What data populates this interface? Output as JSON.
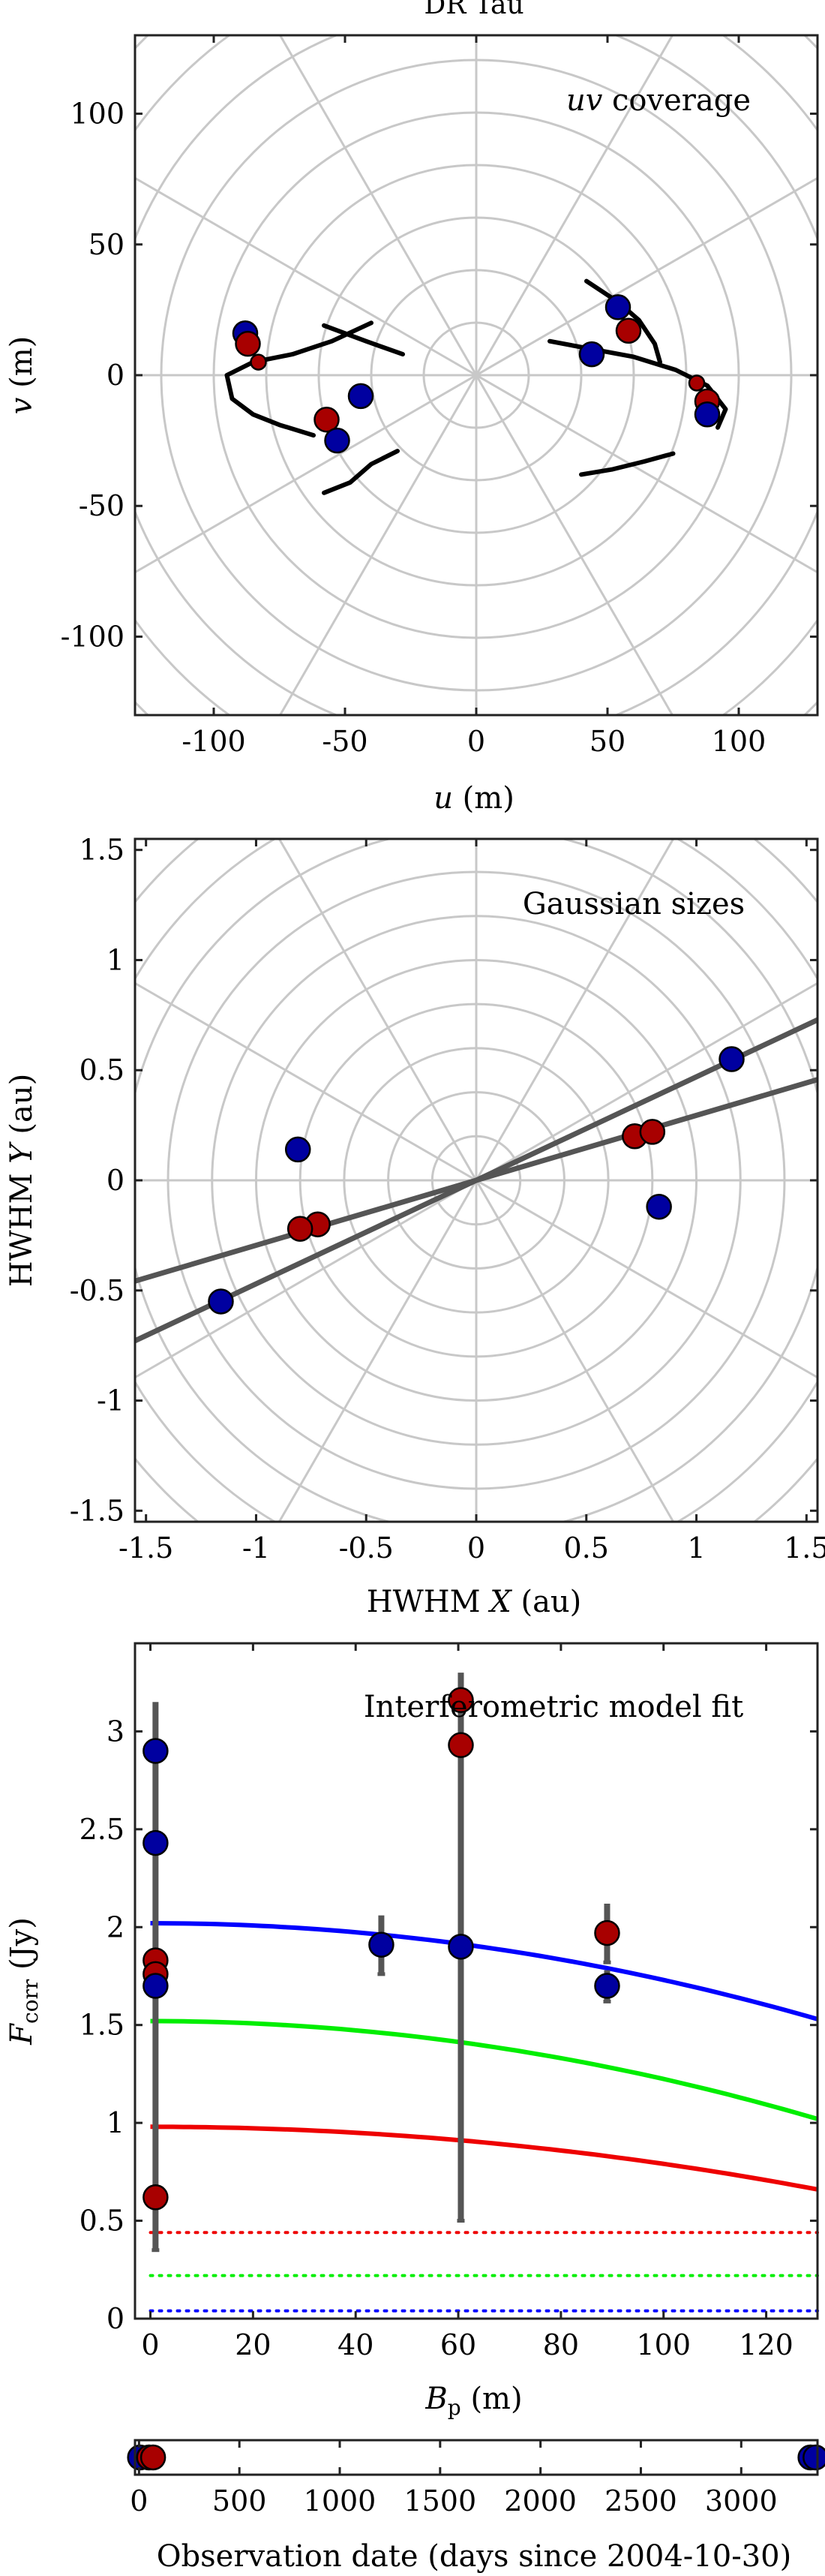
{
  "figure": {
    "title": "DR Tau"
  },
  "colors": {
    "red_marker": "#a80000",
    "blue_marker": "#0000a0",
    "grid": "#c8c8c8",
    "line_dark": "#555555",
    "fit_blue": "#0000ff",
    "fit_green": "#00ee00",
    "fit_red": "#ee0000"
  },
  "chart_data": [
    {
      "type": "scatter",
      "panel": "uv",
      "annotation": "uv coverage",
      "annotation_italic": "uv",
      "annotation_rest": " coverage",
      "xlabel": "u (m)",
      "xlabel_sym": "u",
      "xlabel_unit": " (m)",
      "ylabel": "v (m)",
      "ylabel_sym": "v",
      "ylabel_unit": " (m)",
      "xlim": [
        -130,
        130
      ],
      "ylim": [
        -130,
        130
      ],
      "xticks": [
        "-100",
        "-50",
        "0",
        "50",
        "100"
      ],
      "yticks": [
        "-100",
        "-50",
        "0",
        "50",
        "100"
      ],
      "grid": "polar",
      "tracks": [
        [
          [
            -58,
            -45
          ],
          [
            -48,
            -41
          ],
          [
            -40,
            -34
          ],
          [
            -30,
            -29
          ]
        ],
        [
          [
            -40,
            20
          ],
          [
            -55,
            13
          ],
          [
            -70,
            8
          ],
          [
            -85,
            5
          ],
          [
            -95,
            0
          ],
          [
            -93,
            -9
          ],
          [
            -85,
            -15
          ],
          [
            -75,
            -19
          ],
          [
            -62,
            -23
          ]
        ],
        [
          [
            -58,
            19
          ],
          [
            -42,
            13
          ],
          [
            -28,
            8
          ]
        ],
        [
          [
            40,
            -38
          ],
          [
            52,
            -36
          ],
          [
            64,
            -33
          ],
          [
            75,
            -30
          ]
        ],
        [
          [
            92,
            -20
          ],
          [
            95,
            -13
          ],
          [
            88,
            -4
          ],
          [
            76,
            2
          ],
          [
            60,
            7
          ],
          [
            44,
            10
          ],
          [
            28,
            13
          ]
        ],
        [
          [
            42,
            36
          ],
          [
            54,
            28
          ],
          [
            62,
            21
          ],
          [
            68,
            12
          ],
          [
            70,
            5
          ]
        ]
      ],
      "points": [
        {
          "u": -88,
          "v": 16,
          "color": "blue"
        },
        {
          "u": -87,
          "v": 12,
          "color": "red"
        },
        {
          "u": -83,
          "v": 5,
          "color": "red",
          "small": true
        },
        {
          "u": -57,
          "v": -17,
          "color": "red"
        },
        {
          "u": -53,
          "v": -25,
          "color": "blue"
        },
        {
          "u": -44,
          "v": -8,
          "color": "blue"
        },
        {
          "u": 44,
          "v": 8,
          "color": "blue"
        },
        {
          "u": 54,
          "v": 26,
          "color": "blue"
        },
        {
          "u": 58,
          "v": 17,
          "color": "red"
        },
        {
          "u": 84,
          "v": -3,
          "color": "red",
          "small": true
        },
        {
          "u": 88,
          "v": -10,
          "color": "red"
        },
        {
          "u": 88,
          "v": -15,
          "color": "blue"
        }
      ]
    },
    {
      "type": "scatter",
      "panel": "sizes",
      "annotation": "Gaussian sizes",
      "xlabel": "HWHM X (au)",
      "xlabel_pre": "HWHM ",
      "xlabel_sym": "X",
      "xlabel_unit": " (au)",
      "ylabel": "HWHM Y (au)",
      "ylabel_pre": "HWHM ",
      "ylabel_sym": "Y",
      "ylabel_unit": " (au)",
      "xlim": [
        -1.55,
        1.55
      ],
      "ylim": [
        -1.55,
        1.55
      ],
      "xticks": [
        "-1.5",
        "-1",
        "-0.5",
        "0",
        "0.5",
        "1",
        "1.5"
      ],
      "yticks": [
        "-1.5",
        "-1",
        "-0.5",
        "0",
        "0.5",
        "1",
        "1.5"
      ],
      "grid": "polar",
      "lines": [
        {
          "slope": 0.47
        },
        {
          "slope": 0.295
        }
      ],
      "points": [
        {
          "x": 1.16,
          "y": 0.55,
          "color": "blue"
        },
        {
          "x": -1.16,
          "y": -0.55,
          "color": "blue"
        },
        {
          "x": 0.72,
          "y": 0.2,
          "color": "red"
        },
        {
          "x": 0.8,
          "y": 0.22,
          "color": "red"
        },
        {
          "x": -0.72,
          "y": -0.2,
          "color": "red"
        },
        {
          "x": -0.8,
          "y": -0.22,
          "color": "red"
        },
        {
          "x": -0.81,
          "y": 0.14,
          "color": "blue"
        },
        {
          "x": 0.83,
          "y": -0.12,
          "color": "blue"
        }
      ]
    },
    {
      "type": "scatter",
      "panel": "fit",
      "annotation": "Interferometric model fit",
      "xlabel": "Bp (m)",
      "xlabel_sym": "B",
      "xlabel_sub": "p",
      "xlabel_unit": " (m)",
      "ylabel": "Fcorr (Jy)",
      "ylabel_sym": "F",
      "ylabel_sub": "corr",
      "ylabel_unit": " (Jy)",
      "xlim": [
        -3,
        130
      ],
      "ylim": [
        0,
        3.45
      ],
      "xticks": [
        "0",
        "20",
        "40",
        "60",
        "80",
        "100",
        "120"
      ],
      "yticks": [
        "0",
        "0.5",
        "1",
        "1.5",
        "2",
        "2.5",
        "3"
      ],
      "grid": "none",
      "curves": [
        {
          "color": "blue",
          "y0": 2.02,
          "y_end": 1.53
        },
        {
          "color": "green",
          "y0": 1.52,
          "y_end": 1.02
        },
        {
          "color": "red",
          "y0": 0.98,
          "y_end": 0.66
        }
      ],
      "dotted_levels": [
        {
          "color": "red",
          "y": 0.44
        },
        {
          "color": "green",
          "y": 0.22
        },
        {
          "color": "blue",
          "y": 0.04
        }
      ],
      "errorbars": [
        {
          "x": 1,
          "y": 1.75,
          "err": 1.4
        },
        {
          "x": 60.5,
          "y": 1.9,
          "err": 1.4
        },
        {
          "x": 45,
          "y": 1.91,
          "err": 0.15
        },
        {
          "x": 89,
          "y": 1.97,
          "err": 0.15
        },
        {
          "x": 89,
          "y": 1.7,
          "err": 0.08
        }
      ],
      "points": [
        {
          "x": 1,
          "y": 2.9,
          "color": "blue"
        },
        {
          "x": 1,
          "y": 2.43,
          "color": "blue"
        },
        {
          "x": 1,
          "y": 1.83,
          "color": "red"
        },
        {
          "x": 1,
          "y": 1.76,
          "color": "red"
        },
        {
          "x": 1,
          "y": 1.7,
          "color": "blue"
        },
        {
          "x": 1,
          "y": 0.62,
          "color": "red"
        },
        {
          "x": 45,
          "y": 1.91,
          "color": "blue"
        },
        {
          "x": 60.5,
          "y": 1.9,
          "color": "blue"
        },
        {
          "x": 60.5,
          "y": 2.93,
          "color": "red"
        },
        {
          "x": 60.5,
          "y": 3.16,
          "color": "red"
        },
        {
          "x": 89,
          "y": 1.97,
          "color": "red"
        },
        {
          "x": 89,
          "y": 1.7,
          "color": "blue"
        }
      ]
    },
    {
      "type": "scatter",
      "panel": "dates",
      "xlabel": "Observation date (days since 2004-10-30)",
      "xlim": [
        -20,
        3380
      ],
      "xticks": [
        "0",
        "500",
        "1000",
        "1500",
        "2000",
        "2500",
        "3000"
      ],
      "points": [
        {
          "x": 5,
          "color": "blue"
        },
        {
          "x": 50,
          "color": "red"
        },
        {
          "x": 70,
          "color": "red"
        },
        {
          "x": 3345,
          "color": "blue"
        },
        {
          "x": 3370,
          "color": "blue"
        }
      ]
    }
  ]
}
